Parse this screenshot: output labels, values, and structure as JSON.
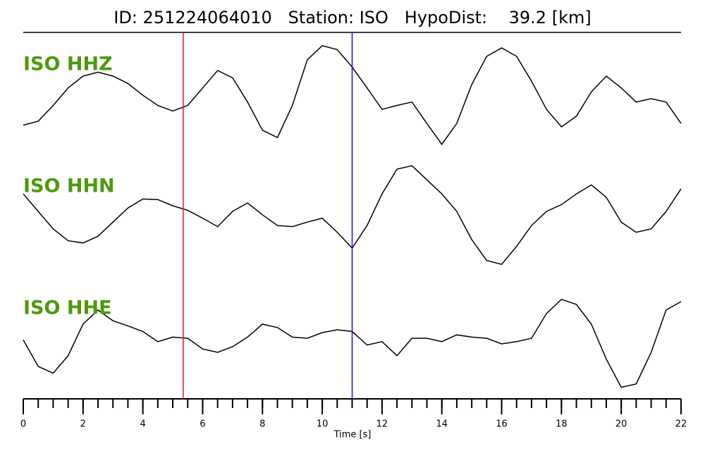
{
  "chart_data": {
    "type": "line",
    "title": "ID: 251224064010   Station: ISO   HypoDist:    39.2 [km]",
    "xlabel": "Time [s]",
    "xlim": [
      0,
      22
    ],
    "xticks": [
      0,
      2,
      4,
      6,
      8,
      10,
      12,
      14,
      16,
      18,
      20,
      22
    ],
    "xminorticks": [
      0,
      0.5,
      1,
      1.5,
      2,
      2.5,
      3,
      3.5,
      4,
      4.5,
      5,
      5.5,
      6,
      6.5,
      7,
      7.5,
      8,
      8.5,
      9,
      9.5,
      10,
      10.5,
      11,
      11.5,
      12,
      12.5,
      13,
      13.5,
      14,
      14.5,
      15,
      15.5,
      16,
      16.5,
      17,
      17.5,
      18,
      18.5,
      19,
      19.5,
      20,
      20.5,
      21,
      21.5,
      22
    ],
    "ylim": [
      -1,
      1
    ],
    "label_color": "#4c9a0c",
    "x": [
      0,
      0.5,
      1,
      1.5,
      2,
      2.5,
      3,
      3.5,
      4,
      4.5,
      5,
      5.5,
      6,
      6.5,
      7,
      7.5,
      8,
      8.5,
      9,
      9.5,
      10,
      10.5,
      11,
      11.5,
      12,
      12.5,
      13,
      13.5,
      14,
      14.5,
      15,
      15.5,
      16,
      16.5,
      17,
      17.5,
      18,
      18.5,
      19,
      19.5,
      20,
      20.5,
      21,
      21.5,
      22
    ],
    "series": [
      {
        "name": "ISO HHZ",
        "color": "#000000",
        "values": [
          -0.47,
          -0.4,
          -0.12,
          0.19,
          0.4,
          0.47,
          0.4,
          0.27,
          0.06,
          -0.12,
          -0.22,
          -0.12,
          0.19,
          0.5,
          0.37,
          -0.06,
          -0.56,
          -0.69,
          -0.12,
          0.69,
          0.94,
          0.87,
          0.56,
          0.19,
          -0.19,
          -0.12,
          -0.06,
          -0.44,
          -0.81,
          -0.44,
          0.25,
          0.75,
          0.9,
          0.75,
          0.31,
          -0.19,
          -0.5,
          -0.31,
          0.12,
          0.4,
          0.19,
          -0.06,
          0,
          -0.06,
          -0.44
        ]
      },
      {
        "name": "ISO HHN",
        "color": "#000000",
        "values": [
          0.31,
          0,
          -0.31,
          -0.52,
          -0.56,
          -0.44,
          -0.19,
          0.06,
          0.22,
          0.21,
          0.1,
          0.02,
          -0.12,
          -0.27,
          0,
          0.15,
          -0.06,
          -0.25,
          -0.27,
          -0.19,
          -0.12,
          -0.37,
          -0.65,
          -0.25,
          0.31,
          0.75,
          0.81,
          0.56,
          0.31,
          0,
          -0.5,
          -0.87,
          -0.94,
          -0.62,
          -0.25,
          0,
          0.12,
          0.31,
          0.47,
          0.25,
          -0.19,
          -0.37,
          -0.31,
          0,
          0.4
        ]
      },
      {
        "name": "ISO HHE",
        "color": "#000000",
        "values": [
          -0.03,
          -0.5,
          -0.62,
          -0.31,
          0.25,
          0.5,
          0.31,
          0.22,
          0.12,
          -0.06,
          0.02,
          0,
          -0.19,
          -0.25,
          -0.15,
          0.02,
          0.25,
          0.19,
          0.02,
          0,
          0.1,
          0.15,
          0.12,
          -0.12,
          -0.06,
          -0.31,
          0,
          0,
          -0.06,
          0.06,
          0.02,
          0,
          -0.1,
          -0.06,
          0,
          0.44,
          0.69,
          0.6,
          0.25,
          -0.37,
          -0.87,
          -0.81,
          -0.25,
          0.5,
          0.65
        ]
      }
    ],
    "vlines": [
      {
        "x": 5.35,
        "color": "#e02020"
      },
      {
        "x": 11.0,
        "color": "#1010e0"
      }
    ]
  }
}
